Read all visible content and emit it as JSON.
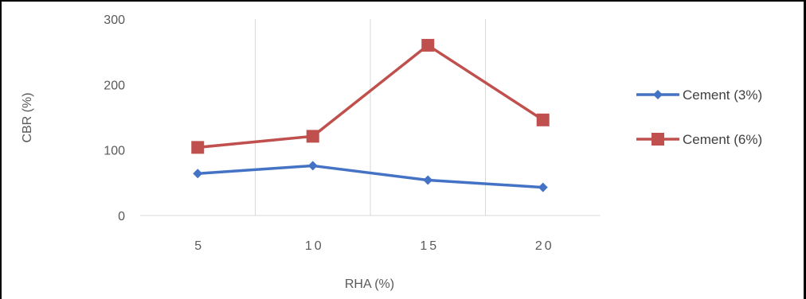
{
  "chart_data": {
    "type": "line",
    "title": "",
    "xlabel": "RHA (%)",
    "ylabel": "CBR (%)",
    "categories": [
      "5",
      "10",
      "15",
      "20"
    ],
    "ylim": [
      0,
      300
    ],
    "yticks": [
      "0",
      "100",
      "200",
      "300"
    ],
    "grid": "vertical",
    "legend_position": "right",
    "series": [
      {
        "name": "Cement (3%)",
        "values": [
          64,
          76,
          54,
          43
        ],
        "color": "#4472C4",
        "marker": "diamond"
      },
      {
        "name": "Cement (6%)",
        "values": [
          104,
          121,
          260,
          146
        ],
        "color": "#C0504D",
        "marker": "square"
      }
    ]
  }
}
